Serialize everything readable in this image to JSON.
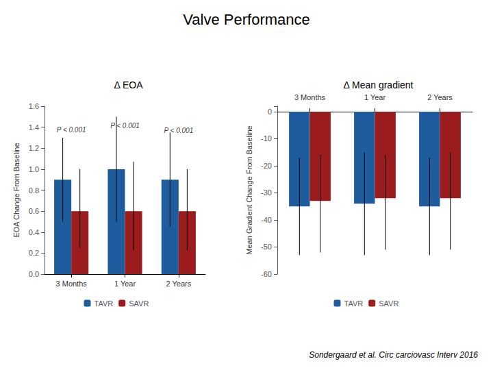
{
  "title": "Valve Performance",
  "annotations": [
    {
      "text": "Sondergaard et al. Circ carciovasc Interv 2016"
    }
  ],
  "chart_data": [
    {
      "type": "bar",
      "title": "Δ EOA",
      "categories": [
        "3 Months",
        "1 Year",
        "2 Years"
      ],
      "series": [
        {
          "name": "TAVR",
          "color": "#1f5c9e",
          "values": [
            0.9,
            1.0,
            0.9
          ],
          "error_low": [
            0.4,
            0.5,
            0.45
          ],
          "error_high": [
            0.4,
            0.5,
            0.45
          ]
        },
        {
          "name": "SAVR",
          "color": "#9b1c1c",
          "values": [
            0.6,
            0.6,
            0.6
          ],
          "error_low": [
            0.35,
            0.37,
            0.37
          ],
          "error_high": [
            0.4,
            0.47,
            0.4
          ]
        }
      ],
      "ylabel": "EOA Change From Baseline",
      "ylim": [
        0.0,
        1.6
      ],
      "yticks": [
        {
          "value": 0.0,
          "label": "0.0"
        },
        0.2,
        0.4,
        0.6,
        0.8,
        {
          "value": 1.0,
          "label": "1.0"
        },
        1.2,
        1.4,
        1.6
      ],
      "grid": false,
      "legend": "bottom",
      "annotations": [
        {
          "text": "P < 0.001",
          "x": "3 Months",
          "y": 1.31
        },
        {
          "text": "P < 0.001",
          "x": "1 Year",
          "y": 1.35
        },
        {
          "text": "P < 0.001",
          "x": "2 Years",
          "y": 1.3
        }
      ]
    },
    {
      "type": "bar",
      "title": "Δ Mean gradient",
      "categories": [
        "3 Months",
        "1 Year",
        "2 Years"
      ],
      "series": [
        {
          "name": "TAVR",
          "color": "#1f5c9e",
          "values": [
            -35,
            -34,
            -35
          ],
          "error_low": [
            18,
            19,
            18
          ],
          "error_high": [
            18,
            19,
            18
          ]
        },
        {
          "name": "SAVR",
          "color": "#9b1c1c",
          "values": [
            -33,
            -32,
            -32
          ],
          "error_low": [
            19,
            19,
            19
          ],
          "error_high": [
            17,
            16,
            17
          ]
        }
      ],
      "ylabel": "Mean Gradient Change From Baseline",
      "ylim": [
        -60,
        2
      ],
      "yticks": [
        0,
        -10,
        -20,
        -30,
        -40,
        -50,
        -60
      ],
      "grid": false,
      "legend": "bottom"
    }
  ]
}
